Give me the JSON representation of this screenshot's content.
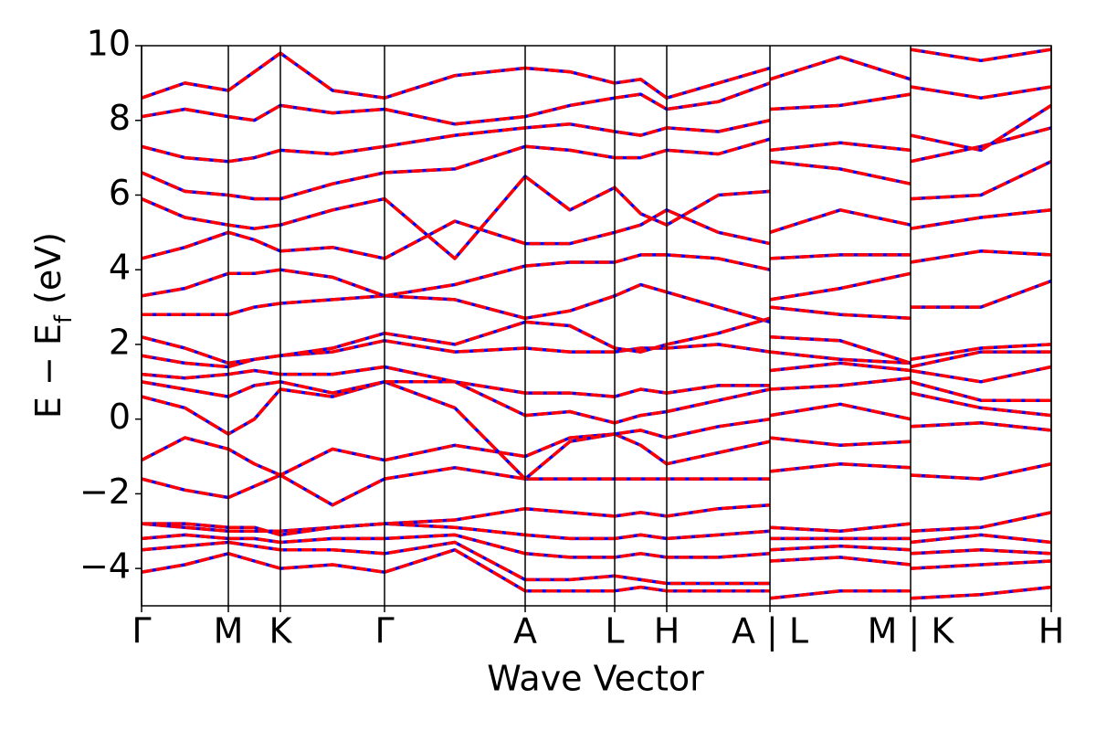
{
  "chart_data": {
    "type": "band-structure",
    "xlabel": "Wave Vector",
    "ylabel": [
      "E − E",
      "f",
      " (eV)"
    ],
    "xlim": [
      0,
      1
    ],
    "ylim": [
      -5,
      10
    ],
    "xticks": [
      {
        "value": 0,
        "label": "Γ"
      },
      {
        "value": 0.0954,
        "label": "M"
      },
      {
        "value": 0.1526,
        "label": "K"
      },
      {
        "value": 0.2671,
        "label": "Γ"
      },
      {
        "value": 0.4217,
        "label": "A"
      },
      {
        "value": 0.5201,
        "label": "L"
      },
      {
        "value": 0.5773,
        "label": "H"
      },
      {
        "value": 0.6908,
        "label": "A | L"
      },
      {
        "value": 0.8454,
        "label": "M | K"
      },
      {
        "value": 1,
        "label": "H"
      }
    ],
    "yticks": [
      {
        "value": -4,
        "label": "−4"
      },
      {
        "value": -2,
        "label": "−2"
      },
      0,
      2,
      4,
      6,
      8,
      10
    ],
    "xgrid": true,
    "line_color": "#0000ff",
    "dash_color": "#ff0000",
    "x": [
      0,
      0.0477,
      0.0954,
      0.124,
      0.1526,
      0.2099,
      0.2671,
      0.3444,
      0.4217,
      0.4709,
      0.5201,
      0.5487,
      0.5773,
      0.634,
      0.6908,
      null,
      0.6908,
      0.7681,
      0.8454,
      null,
      0.8454,
      0.9227,
      1
    ],
    "series": [
      {
        "values": [
          -4.1,
          -3.9,
          -3.6,
          -3.8,
          -4.0,
          -3.9,
          -4.1,
          -3.5,
          -4.6,
          -4.6,
          -4.6,
          -4.5,
          -4.6,
          -4.6,
          -4.6,
          null,
          -4.8,
          -4.6,
          -4.6,
          null,
          -4.8,
          -4.7,
          -4.5
        ]
      },
      {
        "values": [
          -3.5,
          -3.4,
          -3.3,
          -3.4,
          -3.5,
          -3.5,
          -3.6,
          -3.3,
          -4.3,
          -4.3,
          -4.2,
          -4.3,
          -4.4,
          -4.4,
          -4.4,
          null,
          -3.8,
          -3.7,
          -3.9,
          null,
          -4.0,
          -3.9,
          -3.8
        ]
      },
      {
        "values": [
          -3.2,
          -3.1,
          -3.2,
          -3.2,
          -3.3,
          -3.2,
          -3.2,
          -3.1,
          -3.6,
          -3.7,
          -3.7,
          -3.6,
          -3.7,
          -3.7,
          -3.6,
          null,
          -3.5,
          -3.4,
          -3.5,
          null,
          -3.6,
          -3.5,
          -3.6
        ]
      },
      {
        "values": [
          -2.8,
          -2.9,
          -3.0,
          -3.0,
          -3.0,
          -2.9,
          -2.8,
          -2.9,
          -3.1,
          -3.2,
          -3.2,
          -3.1,
          -3.2,
          -3.1,
          -3.0,
          null,
          -3.2,
          -3.2,
          -3.2,
          null,
          -3.3,
          -3.1,
          -3.3
        ]
      },
      {
        "values": [
          -2.8,
          -2.8,
          -2.9,
          -2.9,
          -3.1,
          -2.9,
          -2.8,
          -2.7,
          -2.4,
          -2.5,
          -2.6,
          -2.5,
          -2.6,
          -2.4,
          -2.3,
          null,
          -2.9,
          -3.0,
          -2.8,
          null,
          -3.0,
          -2.9,
          -2.5
        ]
      },
      {
        "values": [
          -1.6,
          -1.9,
          -2.1,
          -1.8,
          -1.5,
          -2.3,
          -1.6,
          -1.3,
          -1.6,
          -1.6,
          -1.6,
          -1.6,
          -1.6,
          -1.6,
          -1.6,
          null,
          -1.4,
          -1.2,
          -1.3,
          null,
          -1.5,
          -1.6,
          -1.2
        ]
      },
      {
        "values": [
          -1.1,
          -0.5,
          -0.8,
          -1.2,
          -1.5,
          -0.8,
          -1.1,
          -0.7,
          -1.0,
          -0.5,
          -0.4,
          -0.7,
          -1.2,
          -0.9,
          -0.6,
          null,
          -0.5,
          -0.7,
          -0.6,
          null,
          -0.2,
          -0.1,
          -0.3
        ]
      },
      {
        "values": [
          0.6,
          0.3,
          -0.4,
          0.0,
          0.8,
          0.6,
          1.0,
          0.3,
          -1.6,
          -0.6,
          -0.4,
          -0.3,
          -0.5,
          -0.2,
          0.0,
          null,
          0.1,
          0.4,
          0.0,
          null,
          0.7,
          0.3,
          0.1
        ]
      },
      {
        "values": [
          1.0,
          0.8,
          0.6,
          0.9,
          1.0,
          0.7,
          1.0,
          1.0,
          0.1,
          0.2,
          -0.1,
          0.1,
          0.2,
          0.5,
          0.8,
          null,
          0.8,
          0.9,
          1.1,
          null,
          1.0,
          0.5,
          0.5
        ]
      },
      {
        "values": [
          1.2,
          1.1,
          1.2,
          1.3,
          1.2,
          1.2,
          1.4,
          1.0,
          0.7,
          0.7,
          0.6,
          0.8,
          0.7,
          0.9,
          0.9,
          null,
          1.3,
          1.5,
          1.3,
          null,
          1.3,
          1.0,
          1.4
        ]
      },
      {
        "values": [
          1.7,
          1.5,
          1.4,
          1.6,
          1.7,
          1.8,
          2.1,
          1.8,
          1.9,
          1.8,
          1.8,
          1.9,
          1.9,
          2.0,
          1.8,
          null,
          1.8,
          1.6,
          1.5,
          null,
          1.6,
          1.9,
          2.0
        ]
      },
      {
        "values": [
          2.2,
          1.9,
          1.5,
          1.6,
          1.7,
          1.9,
          2.3,
          2.0,
          2.6,
          2.5,
          1.9,
          1.8,
          2.0,
          2.3,
          2.7,
          null,
          2.2,
          2.1,
          1.5,
          null,
          1.4,
          1.8,
          1.8
        ]
      },
      {
        "values": [
          2.8,
          2.8,
          2.8,
          3.0,
          3.1,
          3.2,
          3.3,
          3.2,
          2.7,
          2.9,
          3.3,
          3.6,
          3.4,
          3.0,
          2.6,
          null,
          3.0,
          2.8,
          2.7,
          null,
          3.0,
          3.0,
          3.7
        ]
      },
      {
        "values": [
          3.3,
          3.5,
          3.9,
          3.9,
          4.0,
          3.8,
          3.3,
          3.6,
          4.1,
          4.2,
          4.2,
          4.4,
          4.4,
          4.3,
          4.0,
          null,
          3.2,
          3.5,
          3.9,
          null,
          4.2,
          4.5,
          4.4
        ]
      },
      {
        "values": [
          4.3,
          4.6,
          5.0,
          4.8,
          4.5,
          4.6,
          4.3,
          5.3,
          4.7,
          4.7,
          5.0,
          5.2,
          5.6,
          5.0,
          4.7,
          null,
          4.3,
          4.4,
          4.4,
          null,
          5.1,
          5.4,
          5.6
        ]
      },
      {
        "values": [
          5.9,
          5.4,
          5.2,
          5.1,
          5.2,
          5.6,
          5.9,
          4.3,
          6.5,
          5.6,
          6.2,
          5.5,
          5.2,
          6.0,
          6.1,
          null,
          5.0,
          5.6,
          5.2,
          null,
          5.9,
          6.0,
          6.9
        ]
      },
      {
        "values": [
          6.6,
          6.1,
          6.0,
          5.9,
          5.9,
          6.3,
          6.6,
          6.7,
          7.3,
          7.2,
          7.0,
          7.0,
          7.2,
          7.1,
          7.5,
          null,
          6.9,
          6.7,
          6.3,
          null,
          6.9,
          7.3,
          7.8
        ]
      },
      {
        "values": [
          7.3,
          7.0,
          6.9,
          7.0,
          7.2,
          7.1,
          7.3,
          7.6,
          7.8,
          7.9,
          7.7,
          7.6,
          7.8,
          7.7,
          8.0,
          null,
          7.2,
          7.4,
          7.2,
          null,
          7.6,
          7.2,
          8.4
        ]
      },
      {
        "values": [
          8.1,
          8.3,
          8.1,
          8.0,
          8.4,
          8.2,
          8.3,
          7.9,
          8.1,
          8.4,
          8.6,
          8.7,
          8.3,
          8.5,
          9.0,
          null,
          8.3,
          8.4,
          8.7,
          null,
          8.9,
          8.6,
          8.9
        ]
      },
      {
        "values": [
          8.6,
          9.0,
          8.8,
          9.3,
          9.8,
          8.8,
          8.6,
          9.2,
          9.4,
          9.3,
          9.0,
          9.1,
          8.6,
          9.0,
          9.4,
          null,
          9.1,
          9.7,
          9.1,
          null,
          9.9,
          9.6,
          9.9
        ]
      }
    ]
  }
}
